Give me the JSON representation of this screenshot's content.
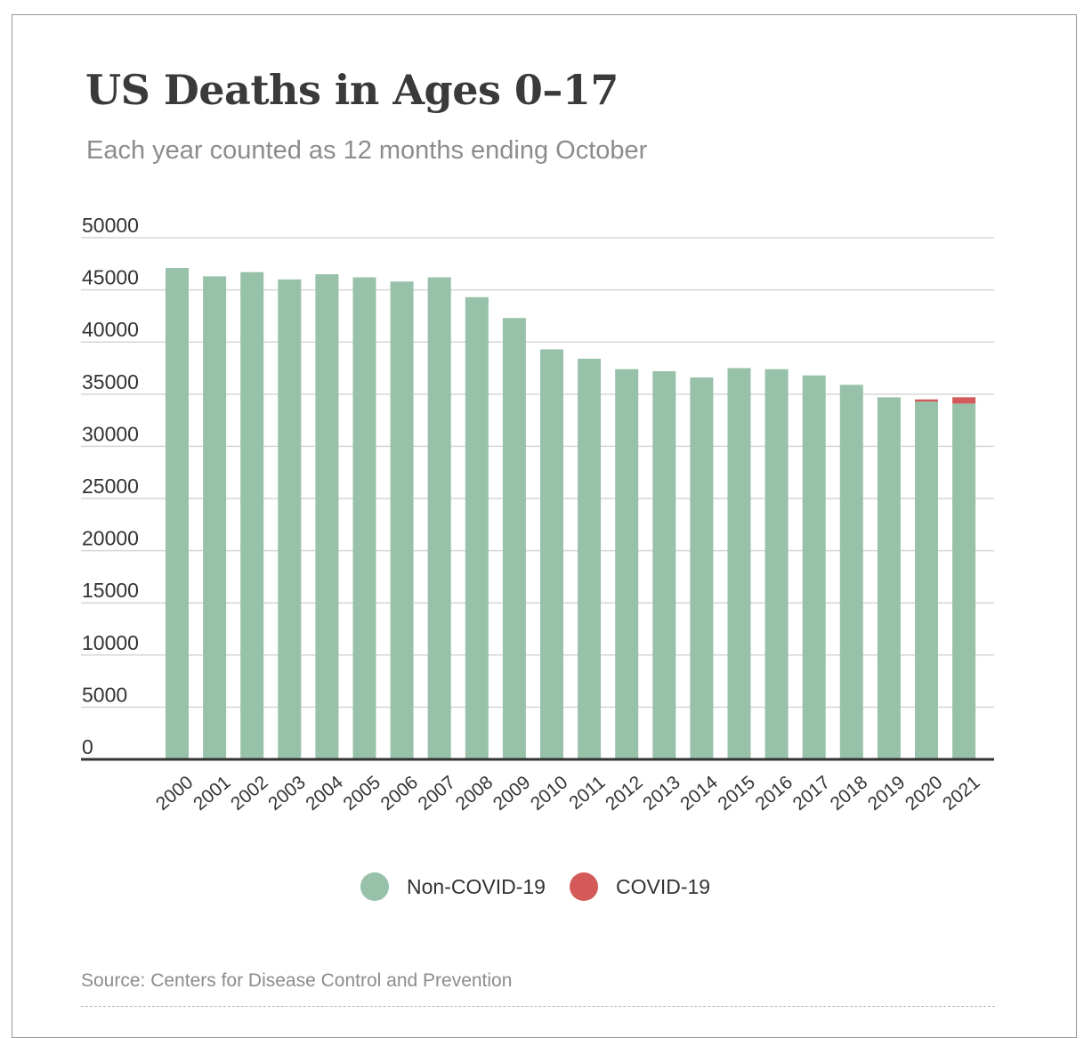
{
  "chart_data": {
    "type": "bar",
    "stacked": true,
    "title": "US Deaths in Ages 0–17",
    "subtitle": "Each year counted as 12 months ending October",
    "source": "Source: Centers for Disease Control and Prevention",
    "categories": [
      "2000",
      "2001",
      "2002",
      "2003",
      "2004",
      "2005",
      "2006",
      "2007",
      "2008",
      "2009",
      "2010",
      "2011",
      "2012",
      "2013",
      "2014",
      "2015",
      "2016",
      "2017",
      "2018",
      "2019",
      "2020",
      "2021"
    ],
    "series": [
      {
        "name": "Non-COVID-19",
        "color": "#98c1a9",
        "values": [
          47100,
          46300,
          46700,
          46000,
          46500,
          46200,
          45800,
          46200,
          44300,
          42300,
          39300,
          38400,
          37400,
          37200,
          36600,
          37500,
          37400,
          36800,
          35900,
          34700,
          34300,
          34100
        ]
      },
      {
        "name": "COVID-19",
        "color": "#d45a5a",
        "values": [
          0,
          0,
          0,
          0,
          0,
          0,
          0,
          0,
          0,
          0,
          0,
          0,
          0,
          0,
          0,
          0,
          0,
          0,
          0,
          0,
          200,
          600
        ]
      }
    ],
    "yticks": [
      "0",
      "5000",
      "10000",
      "15000",
      "20000",
      "25000",
      "30000",
      "35000",
      "40000",
      "45000",
      "50000"
    ],
    "ylim": [
      0,
      50000
    ],
    "legend_position": "bottom"
  }
}
